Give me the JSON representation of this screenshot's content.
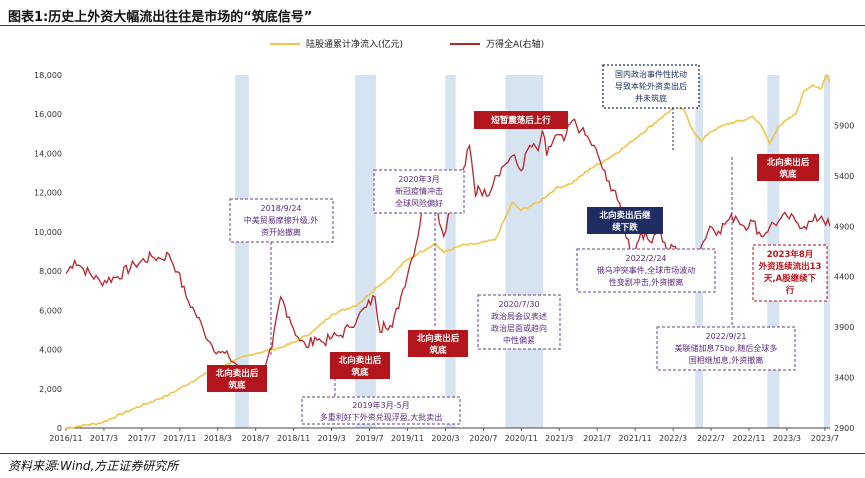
{
  "header": {
    "title": "图表1:历史上外资大幅流出往往是市场的“筑底信号”"
  },
  "footer": {
    "source": "资料来源:Wind,方正证券研究所"
  },
  "chart_data": {
    "type": "line",
    "title": "历史上外资大幅流出往往是市场的“筑底信号”",
    "x_tick_labels": [
      "2016/11",
      "2017/3",
      "2017/7",
      "2017/11",
      "2018/3",
      "2018/7",
      "2018/11",
      "2019/3",
      "2019/7",
      "2019/11",
      "2020/3",
      "2020/7",
      "2020/11",
      "2021/3",
      "2021/7",
      "2021/11",
      "2022/3",
      "2022/7",
      "2022/11",
      "2023/3",
      "2023/7"
    ],
    "left_axis": {
      "label": "陆股通累计净流入(亿元)",
      "ylim": [
        0,
        18000
      ],
      "ticks": [
        "0",
        "2,000",
        "4,000",
        "6,000",
        "8,000",
        "10,000",
        "12,000",
        "14,000",
        "16,000",
        "18,000"
      ]
    },
    "right_axis": {
      "label": "万得全A(右轴)",
      "ylim": [
        2900,
        6400
      ],
      "ticks": [
        "2900",
        "3400",
        "3900",
        "4400",
        "4900",
        "5400",
        "5900"
      ]
    },
    "colors": {
      "inflow": "#f2c44a",
      "index": "#b8262c",
      "shade": "#d6e3f1",
      "ann_purple": "#6a3d9a",
      "ann_red_fill": "#b2151b",
      "ann_navy_fill": "#1f2d63",
      "ann_navy_border": "#1f2d63",
      "rule": "#9a1b1f"
    },
    "series": [
      {
        "name": "陆股通累计净流入(亿元)",
        "axis": "left",
        "points": [
          [
            0,
            0
          ],
          [
            4,
            250
          ],
          [
            8,
            1000
          ],
          [
            12,
            1700
          ],
          [
            16,
            2700
          ],
          [
            20,
            3500
          ],
          [
            22,
            3800
          ],
          [
            25,
            4100
          ],
          [
            27,
            4450
          ],
          [
            29,
            5000
          ],
          [
            31,
            5800
          ],
          [
            34,
            6300
          ],
          [
            36,
            7100
          ],
          [
            38,
            7800
          ],
          [
            39.5,
            8500
          ],
          [
            41,
            8900
          ],
          [
            43,
            9400
          ],
          [
            44,
            8950
          ],
          [
            46,
            9300
          ],
          [
            48,
            9400
          ],
          [
            50,
            9600
          ],
          [
            52,
            11500
          ],
          [
            53,
            11100
          ],
          [
            55,
            11500
          ],
          [
            57,
            12200
          ],
          [
            59,
            12500
          ],
          [
            61,
            13200
          ],
          [
            63,
            13700
          ],
          [
            65,
            14300
          ],
          [
            67,
            15000
          ],
          [
            69,
            15700
          ],
          [
            71,
            16400
          ],
          [
            72,
            16200
          ],
          [
            73,
            15200
          ],
          [
            74,
            14600
          ],
          [
            75,
            15100
          ],
          [
            77,
            15500
          ],
          [
            79,
            15700
          ],
          [
            80,
            15900
          ],
          [
            81,
            15400
          ],
          [
            82,
            14500
          ],
          [
            83,
            15400
          ],
          [
            85,
            16000
          ],
          [
            86,
            17200
          ],
          [
            87,
            17500
          ],
          [
            88,
            17300
          ],
          [
            88.6,
            18000
          ],
          [
            89,
            17600
          ]
        ]
      },
      {
        "name": "万得全A(右轴)",
        "axis": "right",
        "points": [
          [
            0,
            4430
          ],
          [
            1,
            4560
          ],
          [
            2,
            4480
          ],
          [
            4,
            4350
          ],
          [
            6,
            4400
          ],
          [
            8,
            4520
          ],
          [
            10,
            4600
          ],
          [
            11,
            4580
          ],
          [
            12,
            4620
          ],
          [
            13,
            4450
          ],
          [
            14,
            4200
          ],
          [
            15,
            4050
          ],
          [
            16,
            3880
          ],
          [
            17,
            3720
          ],
          [
            18,
            3650
          ],
          [
            19,
            3600
          ],
          [
            20,
            3520
          ],
          [
            21,
            3420
          ],
          [
            22,
            3300
          ],
          [
            23,
            3420
          ],
          [
            24,
            3700
          ],
          [
            25,
            4200
          ],
          [
            26,
            4000
          ],
          [
            27,
            3800
          ],
          [
            28,
            3700
          ],
          [
            29,
            3800
          ],
          [
            30,
            3750
          ],
          [
            31,
            3800
          ],
          [
            32,
            3820
          ],
          [
            33,
            3900
          ],
          [
            34,
            4000
          ],
          [
            35,
            4100
          ],
          [
            36,
            4200
          ],
          [
            36.6,
            3850
          ],
          [
            37,
            3950
          ],
          [
            38,
            3900
          ],
          [
            39,
            4200
          ],
          [
            40,
            4500
          ],
          [
            41,
            4800
          ],
          [
            41.7,
            5250
          ],
          [
            42,
            5050
          ],
          [
            43,
            5150
          ],
          [
            44,
            4800
          ],
          [
            45,
            5200
          ],
          [
            46,
            5350
          ],
          [
            47,
            5700
          ],
          [
            47.7,
            5200
          ],
          [
            48,
            5300
          ],
          [
            49,
            5200
          ],
          [
            50,
            5400
          ],
          [
            51,
            5500
          ],
          [
            52,
            5600
          ],
          [
            53,
            5450
          ],
          [
            54,
            5700
          ],
          [
            55,
            5650
          ],
          [
            55.5,
            5850
          ],
          [
            56,
            5600
          ],
          [
            57,
            5800
          ],
          [
            58,
            5750
          ],
          [
            59,
            5950
          ],
          [
            60,
            5850
          ],
          [
            61,
            5750
          ],
          [
            62,
            5600
          ],
          [
            63,
            5350
          ],
          [
            64,
            5250
          ],
          [
            65,
            4900
          ],
          [
            66,
            4600
          ],
          [
            67,
            4850
          ],
          [
            68,
            4750
          ],
          [
            69,
            4900
          ],
          [
            70,
            4650
          ],
          [
            71,
            4700
          ],
          [
            72,
            4500
          ],
          [
            73,
            4400
          ],
          [
            74,
            4700
          ],
          [
            75,
            4900
          ],
          [
            76,
            4850
          ],
          [
            77,
            4950
          ],
          [
            78,
            5000
          ],
          [
            79,
            4900
          ],
          [
            80,
            4950
          ],
          [
            81,
            4800
          ],
          [
            82,
            4900
          ],
          [
            83,
            4950
          ],
          [
            84,
            5000
          ],
          [
            85,
            4950
          ],
          [
            86,
            4900
          ],
          [
            87,
            4950
          ],
          [
            88,
            5000
          ],
          [
            89,
            4900
          ]
        ]
      }
    ],
    "shaded_periods": [
      "2018/6-2018/7",
      "2019/5-2019/6",
      "2020/3",
      "2020/6-2020/10",
      "2022/3",
      "2022/10-2022/11",
      "2023/8"
    ],
    "legend": {
      "inflow": "陆股通累计净流入(亿元)",
      "index": "万得全A(右轴)"
    },
    "annotations": {
      "a2018_9_24": {
        "l1": "2018/9/24",
        "l2": "中美贸易摩擦升级,外",
        "l3": "资开始撤离"
      },
      "a2020_3": {
        "l1": "2020年3月",
        "l2": "新冠疫情冲击",
        "l3": "全球风险偏好"
      },
      "a2020_7_30": {
        "l1": "2020/7/30",
        "l2": "政治局会议表述",
        "l3": "政治层面或趋向",
        "l4": "中性偏紧"
      },
      "a2019_3": {
        "l1": "2019年3月-5月",
        "l2": "多重利好下外资兑现浮盈,大批卖出"
      },
      "a2022_2_24": {
        "l1": "2022/2/24",
        "l2": "俄乌冲突事件,全球市场波动",
        "l3": "性变剧冲击,外资撤离"
      },
      "a2022_9_21": {
        "l1": "2022/9/21",
        "l2": "美联储加息75bp,随后全球多",
        "l3": "国相继加息,外资撤离"
      },
      "policy": {
        "l1": "国内政治事件性扰动",
        "l2": "导致本轮外资卖出后",
        "l3": "并未筑底"
      },
      "red_bottom1": {
        "l1": "北向卖出后",
        "l2": "筑底"
      },
      "red_bottom2": {
        "l1": "北向卖出后",
        "l2": "筑底"
      },
      "red_bottom3": {
        "l1": "北向卖出后",
        "l2": "筑底"
      },
      "red_bottom4": {
        "l1": "北向卖出后",
        "l2": "筑底"
      },
      "red_rally": {
        "l1": "短暂震荡后上行"
      },
      "navy_down": {
        "l1": "北向卖出后继",
        "l2": "续下跌"
      },
      "a2023_8": {
        "l1": "2023年8月",
        "l2": "外资连续流出13",
        "l3": "天,A股继续下",
        "l4": "行"
      }
    }
  }
}
